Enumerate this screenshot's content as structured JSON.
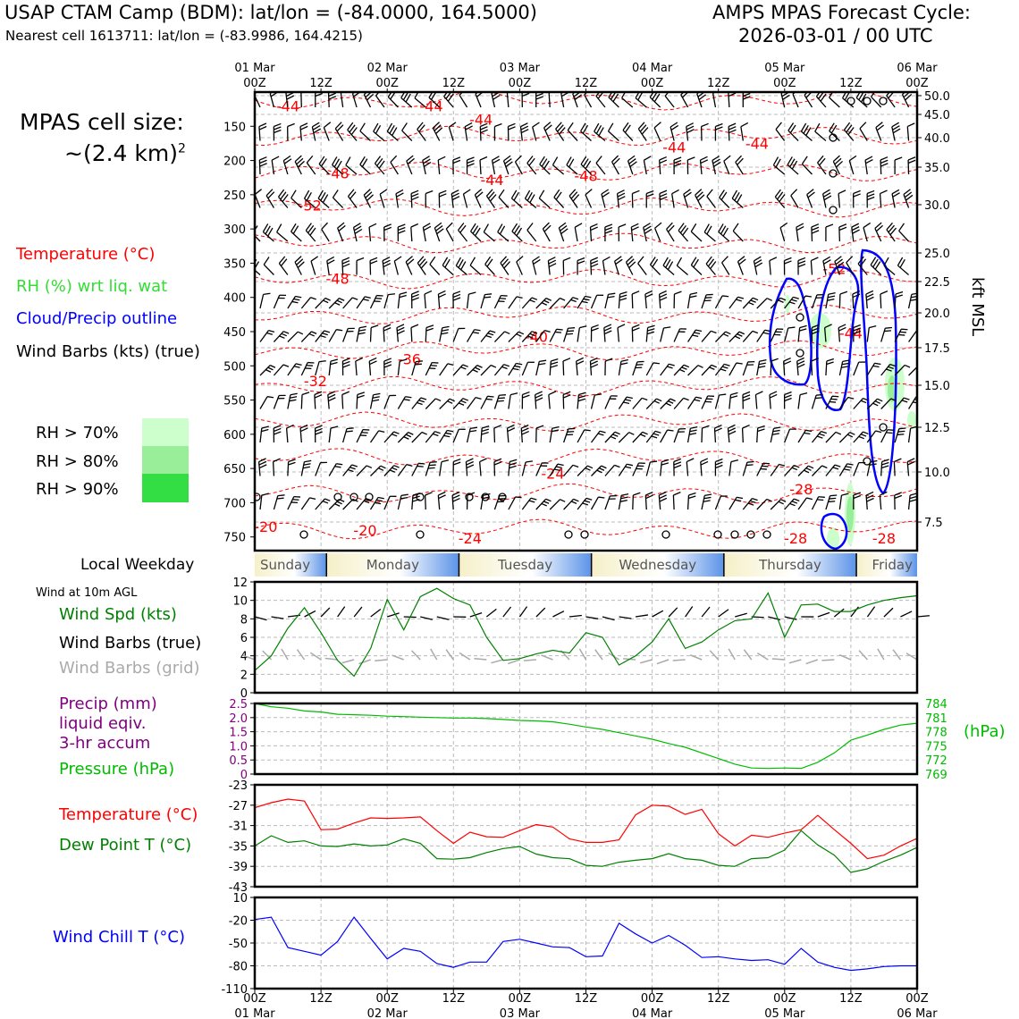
{
  "header": {
    "title_left": "USAP CTAM Camp (BDM): lat/lon = (-84.0000, 164.5000)",
    "subtitle_left": "Nearest cell 1613711: lat/lon = (-83.9986, 164.4215)",
    "title_right_1": "AMPS MPAS Forecast Cycle:",
    "title_right_2": "2026-03-01 / 00 UTC"
  },
  "side": {
    "cell_size_label": "MPAS cell size:",
    "cell_size_value": "~(2.4 km)",
    "cell_size_exp": "2",
    "legend_temperature": "Temperature (°C)",
    "legend_rh": "RH (%) wrt liq. wat",
    "legend_cloud": "Cloud/Precip outline",
    "legend_wind": "Wind Barbs (kts) (true)",
    "rh70": "RH > 70%",
    "rh80": "RH > 80%",
    "rh90": "RH > 90%",
    "local_weekday": "Local Weekday",
    "wind10m_title": "Wind at 10m AGL",
    "wind_spd": "Wind Spd (kts)",
    "wind_barbs_true": "Wind Barbs (true)",
    "wind_barbs_grid": "Wind Barbs (grid)",
    "precip_1": "Precip (mm)",
    "precip_2": "liquid eqiv.",
    "precip_3": "3-hr accum",
    "pressure": "Pressure (hPa)",
    "temperature": "Temperature (°C)",
    "dewpoint": "Dew Point T (°C)",
    "windchill": "Wind Chill T (°C)",
    "right_unit_kft": "kft MSL",
    "right_unit_hpa": "(hPa)"
  },
  "colors": {
    "temperature": "#ff0000",
    "rh": "#33dd33",
    "cloud": "#0000ff",
    "wind": "#000000",
    "wind_grid": "#aaaaaa",
    "wind_speed": "#008000",
    "precip": "#800080",
    "pressure": "#00bb00",
    "dewpoint": "#008000",
    "windchill": "#0000ff",
    "rh70": "#ccffcc",
    "rh80": "#99ee99",
    "rh90": "#33dd44"
  },
  "chart_data": [
    {
      "type": "contour",
      "name": "cross_section",
      "top_axis": {
        "date_labels": [
          "01 Mar",
          "02 Mar",
          "03 Mar",
          "04 Mar",
          "05 Mar",
          "06 Mar"
        ],
        "hour_labels": [
          "00Z",
          "12Z",
          "00Z",
          "12Z",
          "00Z",
          "12Z",
          "00Z",
          "12Z",
          "00Z",
          "12Z",
          "00Z"
        ]
      },
      "x_hours": [
        0,
        120
      ],
      "y_pressure_hpa": [
        100,
        770
      ],
      "y_ticks_hpa": [
        "150",
        "200",
        "250",
        "300",
        "350",
        "400",
        "450",
        "500",
        "550",
        "600",
        "650",
        "700",
        "750"
      ],
      "y2_ticks_kft": [
        "50.0",
        "45.0",
        "40.0",
        "35.0",
        "30.0",
        "25.0",
        "22.5",
        "20.0",
        "17.5",
        "15.0",
        "12.5",
        "10.0",
        "7.5"
      ],
      "contour_labels": [
        {
          "text": "-44",
          "x": 6,
          "p": 120
        },
        {
          "text": "-44",
          "x": 32,
          "p": 120
        },
        {
          "text": "-44",
          "x": 41,
          "p": 140
        },
        {
          "text": "-44",
          "x": 76,
          "p": 180
        },
        {
          "text": "-44",
          "x": 91,
          "p": 175
        },
        {
          "text": "-48",
          "x": 15,
          "p": 218
        },
        {
          "text": "-44",
          "x": 43,
          "p": 228
        },
        {
          "text": "-48",
          "x": 60,
          "p": 222
        },
        {
          "text": "-52",
          "x": 10,
          "p": 265
        },
        {
          "text": "-48",
          "x": 15,
          "p": 372
        },
        {
          "text": "-52",
          "x": 105,
          "p": 358
        },
        {
          "text": "-40",
          "x": 51,
          "p": 457
        },
        {
          "text": "-44",
          "x": 108,
          "p": 452
        },
        {
          "text": "-36",
          "x": 28,
          "p": 490
        },
        {
          "text": "-32",
          "x": 11,
          "p": 522
        },
        {
          "text": "-24",
          "x": 54,
          "p": 657
        },
        {
          "text": "-28",
          "x": 99,
          "p": 680
        },
        {
          "text": "-20",
          "x": 2,
          "p": 735
        },
        {
          "text": "-20",
          "x": 20,
          "p": 740
        },
        {
          "text": "-24",
          "x": 39,
          "p": 752
        },
        {
          "text": "-28",
          "x": 98,
          "p": 752
        },
        {
          "text": "-28",
          "x": 114,
          "p": 752
        }
      ]
    },
    {
      "type": "line",
      "name": "wind_speed",
      "x_hours": [
        0,
        3,
        6,
        9,
        12,
        15,
        18,
        21,
        24,
        27,
        30,
        33,
        36,
        39,
        42,
        45,
        48,
        51,
        54,
        57,
        60,
        63,
        66,
        69,
        72,
        75,
        78,
        81,
        84,
        87,
        90,
        93,
        96,
        99,
        102,
        105,
        108,
        111,
        114,
        117,
        120
      ],
      "values": [
        2.4,
        4.0,
        7.0,
        9.2,
        6.5,
        3.5,
        1.8,
        4.8,
        10.1,
        6.8,
        10.4,
        11.3,
        10.2,
        9.5,
        6.0,
        3.5,
        3.7,
        4.2,
        4.6,
        4.3,
        6.5,
        6.0,
        3.0,
        4.0,
        5.5,
        8.0,
        4.8,
        5.5,
        6.8,
        7.8,
        8.0,
        10.8,
        6.0,
        9.5,
        9.6,
        8.8,
        8.8,
        9.5,
        10.0,
        10.3,
        10.5
      ],
      "ylim": [
        0,
        12
      ],
      "y_ticks": [
        "0",
        "2",
        "4",
        "6",
        "8",
        "10",
        "12"
      ]
    },
    {
      "type": "line",
      "name": "pressure_precip",
      "x_hours": [
        0,
        3,
        6,
        9,
        12,
        15,
        18,
        21,
        24,
        27,
        30,
        33,
        36,
        39,
        42,
        45,
        48,
        51,
        54,
        57,
        60,
        63,
        66,
        69,
        72,
        75,
        78,
        81,
        84,
        87,
        90,
        93,
        96,
        99,
        102,
        105,
        108,
        111,
        114,
        117,
        120
      ],
      "values": [
        784.0,
        783.3,
        783.0,
        782.4,
        782.2,
        781.7,
        781.6,
        781.5,
        781.3,
        781.2,
        781.1,
        781.0,
        780.9,
        780.9,
        780.8,
        780.6,
        780.4,
        780.3,
        780.1,
        779.6,
        779.0,
        778.5,
        777.8,
        777.1,
        776.4,
        775.5,
        774.7,
        773.5,
        772.3,
        771.1,
        770.3,
        770.2,
        770.3,
        770.2,
        771.5,
        773.5,
        776.2,
        777.3,
        778.5,
        779.4,
        779.8
      ],
      "precip_values": [
        0,
        0,
        0,
        0,
        0,
        0,
        0,
        0,
        0,
        0,
        0,
        0,
        0,
        0,
        0,
        0,
        0,
        0,
        0,
        0,
        0,
        0,
        0,
        0,
        0,
        0,
        0,
        0,
        0,
        0,
        0,
        0,
        0,
        0,
        0,
        0,
        0,
        0,
        0,
        0,
        0
      ],
      "ylim_precip": [
        0,
        2.5
      ],
      "ylim_pressure": [
        769,
        784
      ],
      "y_ticks_precip": [
        "0",
        "0.5",
        "1.0",
        "1.5",
        "2.0",
        "2.5"
      ],
      "y_ticks_pressure": [
        "769",
        "772",
        "775",
        "778",
        "781",
        "784"
      ]
    },
    {
      "type": "line",
      "name": "temperature_dewpoint",
      "x_hours": [
        0,
        3,
        6,
        9,
        12,
        15,
        18,
        21,
        24,
        27,
        30,
        33,
        36,
        39,
        42,
        45,
        48,
        51,
        54,
        57,
        60,
        63,
        66,
        69,
        72,
        75,
        78,
        81,
        84,
        87,
        90,
        93,
        96,
        99,
        102,
        105,
        108,
        111,
        114,
        117,
        120
      ],
      "temperature": [
        -27.5,
        -26.5,
        -25.8,
        -26.2,
        -31.8,
        -31.7,
        -30.5,
        -29.5,
        -29.6,
        -29.5,
        -29.3,
        -32.0,
        -34.5,
        -32.3,
        -33.2,
        -33.3,
        -32.0,
        -30.8,
        -31.3,
        -33.6,
        -34.3,
        -34.3,
        -33.8,
        -28.9,
        -27.0,
        -27.2,
        -28.8,
        -27.8,
        -32.6,
        -35.0,
        -32.9,
        -33.3,
        -32.5,
        -31.8,
        -29.0,
        -31.8,
        -34.5,
        -37.5,
        -36.8,
        -35.0,
        -33.5
      ],
      "dewpoint": [
        -35.0,
        -33.0,
        -34.3,
        -34.0,
        -35.0,
        -35.1,
        -34.6,
        -35.0,
        -34.8,
        -33.6,
        -34.5,
        -37.5,
        -37.6,
        -37.3,
        -36.3,
        -35.5,
        -35.1,
        -36.6,
        -37.3,
        -37.5,
        -38.8,
        -39.0,
        -38.2,
        -37.8,
        -37.5,
        -36.5,
        -37.5,
        -37.8,
        -38.8,
        -39.0,
        -37.5,
        -37.3,
        -35.8,
        -32.0,
        -34.8,
        -36.8,
        -40.2,
        -39.5,
        -38.0,
        -36.8,
        -35.3
      ],
      "ylim": [
        -43,
        -23
      ],
      "y_ticks": [
        "-23",
        "-27",
        "-31",
        "-35",
        "-39",
        "-43"
      ]
    },
    {
      "type": "line",
      "name": "wind_chill",
      "x_hours": [
        0,
        3,
        6,
        9,
        12,
        15,
        18,
        21,
        24,
        27,
        30,
        33,
        36,
        39,
        42,
        45,
        48,
        51,
        54,
        57,
        60,
        63,
        66,
        69,
        72,
        75,
        78,
        81,
        84,
        87,
        90,
        93,
        96,
        99,
        102,
        105,
        108,
        111,
        114,
        117,
        120
      ],
      "values": [
        -19,
        -16,
        -56,
        -61,
        -66,
        -48,
        -16,
        -44,
        -71,
        -57,
        -61,
        -77,
        -82,
        -75,
        -75,
        -48,
        -45,
        -50,
        -55,
        -56,
        -68,
        -67,
        -24,
        -38,
        -50,
        -40,
        -53,
        -69,
        -68,
        -71,
        -73,
        -72,
        -78,
        -57,
        -75,
        -82,
        -86,
        -84,
        -81,
        -80,
        -80
      ],
      "ylim": [
        -110,
        10
      ],
      "y_ticks": [
        "10",
        "-20",
        "-50",
        "-80",
        "-110"
      ],
      "bottom_axis": {
        "hour_labels": [
          "00Z",
          "12Z",
          "00Z",
          "12Z",
          "00Z",
          "12Z",
          "00Z",
          "12Z",
          "00Z",
          "12Z",
          "00Z"
        ],
        "date_labels": [
          "01 Mar",
          "02 Mar",
          "03 Mar",
          "04 Mar",
          "05 Mar",
          "06 Mar"
        ]
      }
    }
  ],
  "weekdays": [
    "Sunday",
    "Monday",
    "Tuesday",
    "Wednesday",
    "Thursday",
    "Friday"
  ]
}
